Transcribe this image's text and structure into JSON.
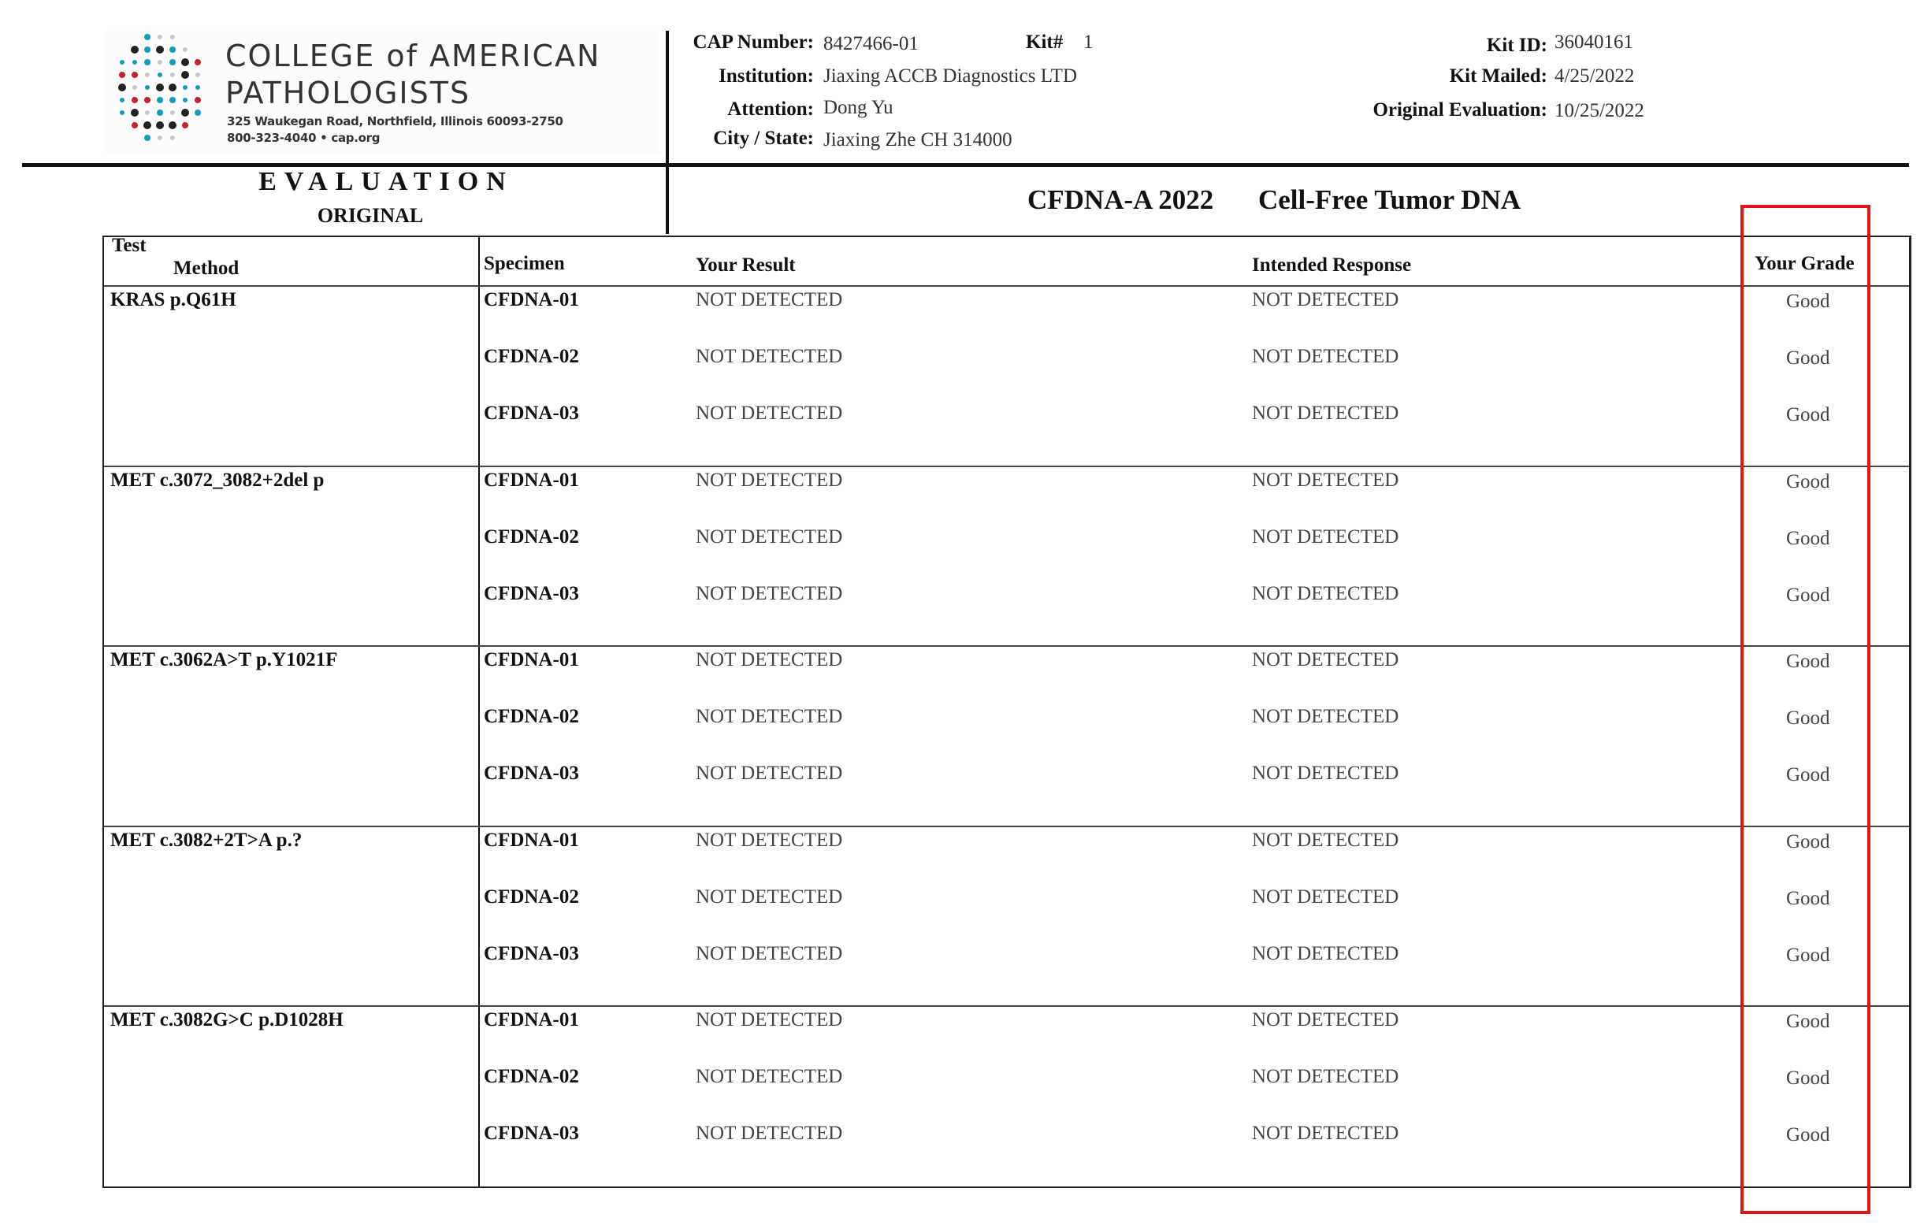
{
  "logo": {
    "line1": "COLLEGE of AMERICAN",
    "line2": "PATHOLOGISTS",
    "address": "325 Waukegan Road, Northfield, Illinois 60093-2750",
    "contact": "800-323-4040  •  cap.org",
    "colors": {
      "teal": "#1a9ac9",
      "red": "#c0272d",
      "dark": "#222222",
      "light": "#c8c8c8"
    }
  },
  "info": {
    "cap_number_label": "CAP Number:",
    "cap_number": "8427466-01",
    "kit_label": "Kit#",
    "kit": "1",
    "institution_label": "Institution:",
    "institution": "Jiaxing ACCB Diagnostics LTD",
    "attention_label": "Attention:",
    "attention": "Dong Yu",
    "city_label": "City / State:",
    "city": "Jiaxing Zhe CH 314000",
    "kit_id_label": "Kit ID:",
    "kit_id": "36040161",
    "kit_mailed_label": "Kit Mailed:",
    "kit_mailed": "4/25/2022",
    "orig_eval_label": "Original Evaluation:",
    "orig_eval": "10/25/2022"
  },
  "evaluation": {
    "title": "EVALUATION",
    "subtitle": "ORIGINAL"
  },
  "program": {
    "code": "CFDNA-A 2022",
    "name": "Cell-Free Tumor DNA"
  },
  "table": {
    "headers": {
      "test": "Test",
      "method": "Method",
      "specimen": "Specimen",
      "result": "Your Result",
      "intended": "Intended Response",
      "grade": "Your Grade"
    },
    "groups": [
      {
        "test": "KRAS p.Q61H",
        "rows": [
          {
            "specimen": "CFDNA-01",
            "result": "NOT DETECTED",
            "intended": "NOT DETECTED",
            "grade": "Good"
          },
          {
            "specimen": "CFDNA-02",
            "result": "NOT DETECTED",
            "intended": "NOT DETECTED",
            "grade": "Good"
          },
          {
            "specimen": "CFDNA-03",
            "result": "NOT DETECTED",
            "intended": "NOT DETECTED",
            "grade": "Good"
          }
        ]
      },
      {
        "test": "MET c.3072_3082+2del p",
        "rows": [
          {
            "specimen": "CFDNA-01",
            "result": "NOT DETECTED",
            "intended": "NOT DETECTED",
            "grade": "Good"
          },
          {
            "specimen": "CFDNA-02",
            "result": "NOT DETECTED",
            "intended": "NOT DETECTED",
            "grade": "Good"
          },
          {
            "specimen": "CFDNA-03",
            "result": "NOT DETECTED",
            "intended": "NOT DETECTED",
            "grade": "Good"
          }
        ]
      },
      {
        "test": "MET c.3062A>T p.Y1021F",
        "rows": [
          {
            "specimen": "CFDNA-01",
            "result": "NOT DETECTED",
            "intended": "NOT DETECTED",
            "grade": "Good"
          },
          {
            "specimen": "CFDNA-02",
            "result": "NOT DETECTED",
            "intended": "NOT DETECTED",
            "grade": "Good"
          },
          {
            "specimen": "CFDNA-03",
            "result": "NOT DETECTED",
            "intended": "NOT DETECTED",
            "grade": "Good"
          }
        ]
      },
      {
        "test": "MET c.3082+2T>A p.?",
        "rows": [
          {
            "specimen": "CFDNA-01",
            "result": "NOT DETECTED",
            "intended": "NOT DETECTED",
            "grade": "Good"
          },
          {
            "specimen": "CFDNA-02",
            "result": "NOT DETECTED",
            "intended": "NOT DETECTED",
            "grade": "Good"
          },
          {
            "specimen": "CFDNA-03",
            "result": "NOT DETECTED",
            "intended": "NOT DETECTED",
            "grade": "Good"
          }
        ]
      },
      {
        "test": "MET c.3082G>C p.D1028H",
        "rows": [
          {
            "specimen": "CFDNA-01",
            "result": "NOT DETECTED",
            "intended": "NOT DETECTED",
            "grade": "Good"
          },
          {
            "specimen": "CFDNA-02",
            "result": "NOT DETECTED",
            "intended": "NOT DETECTED",
            "grade": "Good"
          },
          {
            "specimen": "CFDNA-03",
            "result": "NOT DETECTED",
            "intended": "NOT DETECTED",
            "grade": "Good"
          }
        ]
      }
    ]
  },
  "highlight": {
    "color": "#e0141a"
  }
}
